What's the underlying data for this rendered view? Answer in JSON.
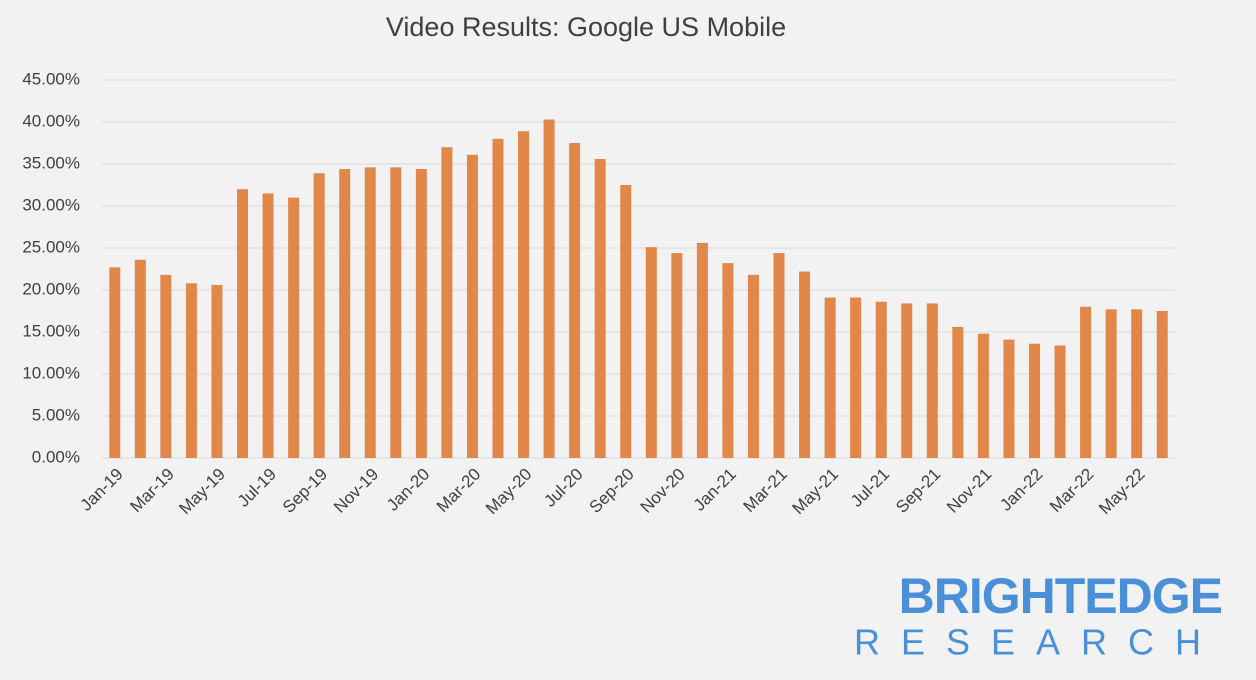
{
  "chart_data": {
    "type": "bar",
    "title": "Video Results: Google US Mobile",
    "categories": [
      "Jan-19",
      null,
      "Mar-19",
      null,
      "May-19",
      null,
      "Jul-19",
      null,
      "Sep-19",
      null,
      "Nov-19",
      null,
      "Jan-20",
      null,
      "Mar-20",
      null,
      "May-20",
      null,
      "Jul-20",
      null,
      "Sep-20",
      null,
      "Nov-20",
      null,
      "Jan-21",
      null,
      "Mar-21",
      null,
      "May-21",
      null,
      "Jul-21",
      null,
      "Sep-21",
      null,
      "Nov-21",
      null,
      "Jan-22",
      null,
      "Mar-22",
      null,
      "May-22",
      null
    ],
    "values": [
      22.7,
      23.6,
      21.8,
      20.8,
      20.6,
      32.0,
      31.5,
      31.0,
      33.9,
      34.4,
      34.6,
      34.6,
      34.4,
      37.0,
      36.1,
      38.0,
      38.9,
      40.3,
      37.5,
      35.6,
      32.5,
      25.1,
      24.4,
      25.6,
      23.2,
      21.8,
      24.4,
      22.2,
      19.1,
      19.1,
      18.6,
      18.4,
      18.4,
      15.6,
      14.8,
      14.1,
      13.6,
      13.4,
      18.0,
      17.7,
      17.7,
      17.5
    ],
    "color": "#e2874a",
    "ylim": [
      0,
      45
    ],
    "yticks": [
      {
        "value": 0,
        "label": "0.00%"
      },
      {
        "value": 5,
        "label": "5.00%"
      },
      {
        "value": 10,
        "label": "10.00%"
      },
      {
        "value": 15,
        "label": "15.00%"
      },
      {
        "value": 20,
        "label": "20.00%"
      },
      {
        "value": 25,
        "label": "25.00%"
      },
      {
        "value": 30,
        "label": "30.00%"
      },
      {
        "value": 35,
        "label": "35.00%"
      },
      {
        "value": 40,
        "label": "40.00%"
      },
      {
        "value": 45,
        "label": "45.00%"
      }
    ],
    "grid": true
  },
  "logo": {
    "line1": "BRIGHTEDGE",
    "line2": "RESEARCH"
  }
}
